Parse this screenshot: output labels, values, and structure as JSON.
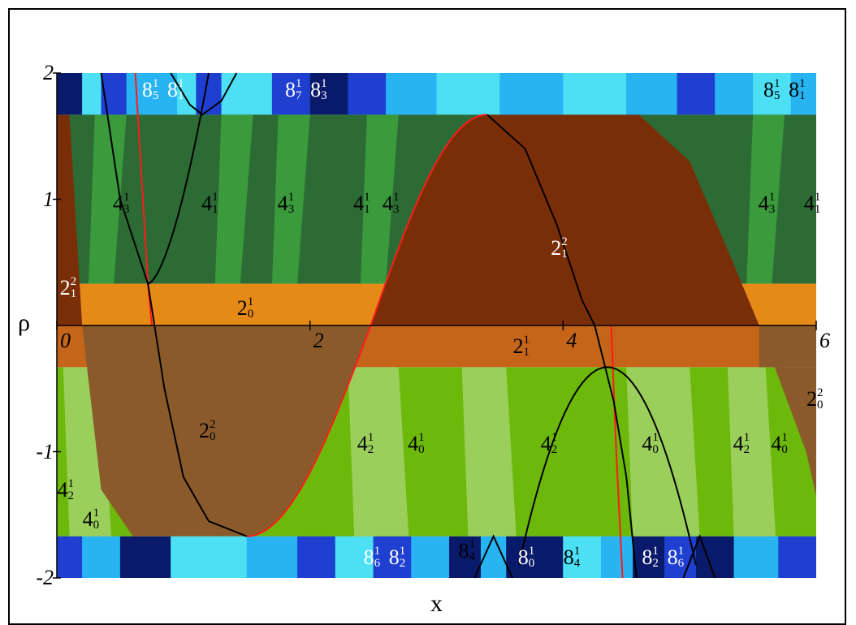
{
  "chart_data": {
    "type": "heatmap",
    "xlabel": "x",
    "ylabel": "ρ",
    "xlim": [
      0,
      6
    ],
    "ylim": [
      -2,
      2
    ],
    "x_ticks": [
      "0",
      "2",
      "4",
      "6"
    ],
    "y_ticks": [
      "2",
      "1",
      "-1",
      "-2"
    ],
    "colors": {
      "dark_brown": "#7a2e08",
      "mid_brown": "#8b5a2b",
      "orange": "#e68a17",
      "dark_orange": "#c4651a",
      "dark_green": "#2d6b35",
      "mid_green": "#3a9a3c",
      "lime": "#6cb90c",
      "light_lime": "#9bcf5c",
      "navy": "#0a1a6a",
      "blue": "#1e3fd0",
      "sky": "#28b4f2",
      "cyan": "#4de0f5",
      "red_curve": "#ff1a1a",
      "black_curve": "#000000"
    },
    "region_labels": [
      {
        "base": "8",
        "sup": "1",
        "sub": "5",
        "x": 0.75,
        "y": 1.85,
        "color": "white"
      },
      {
        "base": "8",
        "sup": "1",
        "sub": "1",
        "x": 0.95,
        "y": 1.85,
        "color": "white"
      },
      {
        "base": "8",
        "sup": "1",
        "sub": "7",
        "x": 1.88,
        "y": 1.85,
        "color": "white"
      },
      {
        "base": "8",
        "sup": "1",
        "sub": "3",
        "x": 2.08,
        "y": 1.85,
        "color": "white"
      },
      {
        "base": "8",
        "sup": "1",
        "sub": "5",
        "x": 5.66,
        "y": 1.85,
        "color": "black"
      },
      {
        "base": "8",
        "sup": "1",
        "sub": "1",
        "x": 5.86,
        "y": 1.85,
        "color": "black"
      },
      {
        "base": "4",
        "sup": "1",
        "sub": "3",
        "x": 0.52,
        "y": 0.95,
        "color": "black"
      },
      {
        "base": "4",
        "sup": "1",
        "sub": "1",
        "x": 1.22,
        "y": 0.95,
        "color": "black"
      },
      {
        "base": "4",
        "sup": "1",
        "sub": "3",
        "x": 1.82,
        "y": 0.95,
        "color": "black"
      },
      {
        "base": "4",
        "sup": "1",
        "sub": "1",
        "x": 2.42,
        "y": 0.95,
        "color": "black"
      },
      {
        "base": "4",
        "sup": "1",
        "sub": "3",
        "x": 2.65,
        "y": 0.95,
        "color": "black"
      },
      {
        "base": "4",
        "sup": "1",
        "sub": "3",
        "x": 5.62,
        "y": 0.95,
        "color": "black"
      },
      {
        "base": "4",
        "sup": "1",
        "sub": "1",
        "x": 5.98,
        "y": 0.95,
        "color": "black"
      },
      {
        "base": "2",
        "sup": "2",
        "sub": "1",
        "x": 3.98,
        "y": 0.6,
        "color": "white"
      },
      {
        "base": "2",
        "sup": "2",
        "sub": "1",
        "x": 0.1,
        "y": 0.28,
        "color": "white"
      },
      {
        "base": "2",
        "sup": "1",
        "sub": "0",
        "x": 1.5,
        "y": 0.12,
        "color": "black"
      },
      {
        "base": "2",
        "sup": "1",
        "sub": "1",
        "x": 3.68,
        "y": -0.18,
        "color": "black"
      },
      {
        "base": "2",
        "sup": "2",
        "sub": "0",
        "x": 6.0,
        "y": -0.6,
        "color": "black"
      },
      {
        "base": "2",
        "sup": "2",
        "sub": "0",
        "x": 1.2,
        "y": -0.85,
        "color": "black"
      },
      {
        "base": "4",
        "sup": "1",
        "sub": "2",
        "x": 2.45,
        "y": -0.95,
        "color": "black"
      },
      {
        "base": "4",
        "sup": "1",
        "sub": "0",
        "x": 2.85,
        "y": -0.95,
        "color": "black"
      },
      {
        "base": "4",
        "sup": "1",
        "sub": "2",
        "x": 3.9,
        "y": -0.95,
        "color": "black"
      },
      {
        "base": "4",
        "sup": "1",
        "sub": "0",
        "x": 4.7,
        "y": -0.95,
        "color": "black"
      },
      {
        "base": "4",
        "sup": "1",
        "sub": "2",
        "x": 5.42,
        "y": -0.95,
        "color": "black"
      },
      {
        "base": "4",
        "sup": "1",
        "sub": "0",
        "x": 5.72,
        "y": -0.95,
        "color": "black"
      },
      {
        "base": "4",
        "sup": "1",
        "sub": "2",
        "x": 0.08,
        "y": -1.32,
        "color": "black"
      },
      {
        "base": "4",
        "sup": "1",
        "sub": "0",
        "x": 0.28,
        "y": -1.55,
        "color": "black"
      },
      {
        "base": "8",
        "sup": "1",
        "sub": "6",
        "x": 2.5,
        "y": -1.85,
        "color": "white"
      },
      {
        "base": "8",
        "sup": "1",
        "sub": "2",
        "x": 2.7,
        "y": -1.85,
        "color": "white"
      },
      {
        "base": "8",
        "sup": "1",
        "sub": "4",
        "x": 3.25,
        "y": -1.8,
        "color": "black"
      },
      {
        "base": "8",
        "sup": "1",
        "sub": "0",
        "x": 3.72,
        "y": -1.85,
        "color": "white"
      },
      {
        "base": "8",
        "sup": "1",
        "sub": "4",
        "x": 4.08,
        "y": -1.85,
        "color": "black"
      },
      {
        "base": "8",
        "sup": "1",
        "sub": "2",
        "x": 4.7,
        "y": -1.85,
        "color": "white"
      },
      {
        "base": "8",
        "sup": "1",
        "sub": "6",
        "x": 4.9,
        "y": -1.85,
        "color": "white"
      }
    ]
  }
}
